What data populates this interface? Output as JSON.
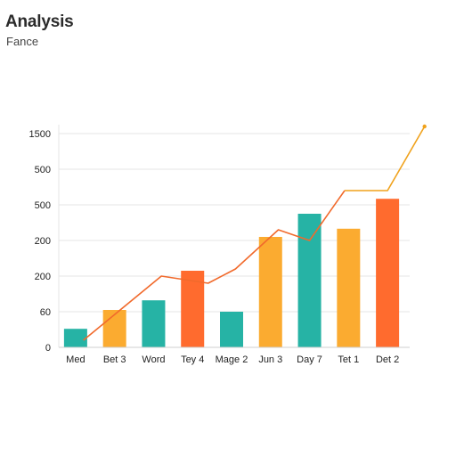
{
  "header": {
    "title": "Analysis",
    "subtitle": "Fance"
  },
  "chart_data": {
    "type": "bar",
    "title": "",
    "xlabel": "",
    "ylabel": "",
    "categories": [
      "Med",
      "Bet 3",
      "Word",
      "Tey 4",
      "Mage 2",
      "Jun 3",
      "Day 7",
      "Tet 1",
      "Det 2"
    ],
    "y_tick_labels": [
      "0",
      "60",
      "200",
      "200",
      "500",
      "500",
      "1500"
    ],
    "ylim_ticks": [
      0,
      6
    ],
    "bars": [
      {
        "value": 0.52,
        "color": "#26b3a5"
      },
      {
        "value": 1.05,
        "color": "#fbab30"
      },
      {
        "value": 1.32,
        "color": "#26b3a5"
      },
      {
        "value": 2.15,
        "color": "#ff6b2e"
      },
      {
        "value": 1.0,
        "color": "#26b3a5"
      },
      {
        "value": 3.1,
        "color": "#fbab30"
      },
      {
        "value": 3.75,
        "color": "#26b3a5"
      },
      {
        "value": 3.33,
        "color": "#fbab30"
      },
      {
        "value": 4.17,
        "color": "#ff6b2e"
      }
    ],
    "line": {
      "values": [
        0.2,
        0.65,
        2.0,
        1.8,
        2.2,
        3.3,
        3.0,
        4.4,
        4.4,
        6.2
      ],
      "x_positions": [
        0.2,
        0.7,
        2.2,
        3.4,
        4.1,
        5.2,
        6.0,
        6.9,
        8.0,
        8.95
      ],
      "colors": [
        "#f16a2c",
        "#f0a21c"
      ]
    },
    "grid": true,
    "legend": "none"
  }
}
